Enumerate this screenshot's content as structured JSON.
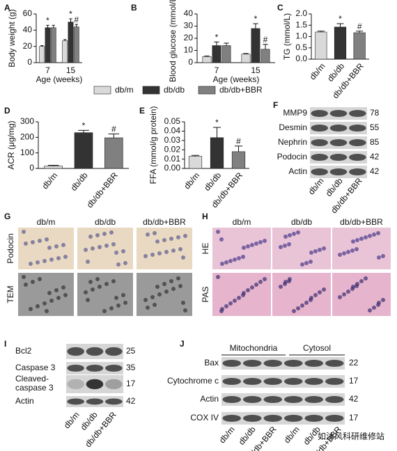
{
  "chart_data": [
    {
      "type": "bar",
      "ylabel": "Body weight (g)",
      "xlabel": "Age (weeks)",
      "categories": [
        "7",
        "15"
      ],
      "series": [
        {
          "name": "db/m",
          "color": "#d9d9d9",
          "values": [
            20,
            27
          ],
          "errors": [
            1,
            1.5
          ],
          "markers": [
            null,
            null
          ]
        },
        {
          "name": "db/db",
          "color": "#333333",
          "values": [
            43,
            50
          ],
          "errors": [
            3,
            4
          ],
          "markers": [
            "*",
            "*"
          ]
        },
        {
          "name": "db/db+BBR",
          "color": "#808080",
          "values": [
            43,
            44
          ],
          "errors": [
            3,
            3
          ],
          "markers": [
            null,
            "#"
          ]
        }
      ],
      "ylim": [
        0,
        60
      ],
      "yticks": [
        0,
        20,
        40,
        60
      ],
      "legend": "bottom"
    },
    {
      "type": "bar",
      "ylabel": "Blood glucose (mmol/L)",
      "xlabel": "Age (weeks)",
      "categories": [
        "7",
        "15"
      ],
      "series": [
        {
          "name": "db/m",
          "color": "#d9d9d9",
          "values": [
            5,
            7
          ],
          "errors": [
            0.5,
            0.5
          ],
          "markers": [
            null,
            null
          ]
        },
        {
          "name": "db/db",
          "color": "#333333",
          "values": [
            14,
            28
          ],
          "errors": [
            3,
            4
          ],
          "markers": [
            "*",
            "*"
          ]
        },
        {
          "name": "db/db+BBR",
          "color": "#808080",
          "values": [
            14,
            11
          ],
          "errors": [
            2,
            4
          ],
          "markers": [
            null,
            "#"
          ]
        }
      ],
      "ylim": [
        0,
        40
      ],
      "yticks": [
        0,
        10,
        20,
        30,
        40
      ]
    },
    {
      "type": "bar",
      "ylabel": "TG (mmol/L)",
      "categories": [
        "db/m",
        "db/db",
        "db/db+BBR"
      ],
      "values": [
        1.2,
        1.42,
        1.17
      ],
      "errors": [
        0.04,
        0.15,
        0.07
      ],
      "markers": [
        null,
        "*",
        "#"
      ],
      "colors": [
        "#d9d9d9",
        "#333333",
        "#808080"
      ],
      "ylim": [
        0,
        2.0
      ],
      "yticks": [
        {
          "value": 0,
          "label": "0.0"
        },
        0.5,
        {
          "value": 1,
          "label": "1.0"
        },
        1.5,
        {
          "value": 2,
          "label": "2.0"
        }
      ]
    },
    {
      "type": "bar",
      "ylabel": "ACR (μg/mg)",
      "categories": [
        "db/m",
        "db/db",
        "db/db+BBR"
      ],
      "values": [
        15,
        230,
        197
      ],
      "errors": [
        5,
        15,
        25
      ],
      "markers": [
        null,
        "*",
        "#"
      ],
      "colors": [
        "#d9d9d9",
        "#333333",
        "#808080"
      ],
      "ylim": [
        0,
        300
      ],
      "yticks": [
        0,
        100,
        200,
        300
      ]
    },
    {
      "type": "bar",
      "ylabel": "FFA (mmol/g protein)",
      "categories": [
        "db/m",
        "db/db",
        "db/db+BBR"
      ],
      "values": [
        0.013,
        0.033,
        0.018
      ],
      "errors": [
        0.001,
        0.011,
        0.006
      ],
      "markers": [
        null,
        "*",
        "#"
      ],
      "colors": [
        "#d9d9d9",
        "#333333",
        "#808080"
      ],
      "ylim": [
        0,
        0.05
      ],
      "yticks": [
        {
          "value": 0,
          "label": "0.00"
        },
        0.01,
        0.02,
        0.03,
        0.04,
        0.05
      ]
    }
  ],
  "panel_letters": [
    "A",
    "B",
    "C",
    "D",
    "E",
    "F",
    "G",
    "H",
    "I",
    "J"
  ],
  "blot_f": {
    "rows": [
      {
        "label": "MMP9",
        "kda": 78
      },
      {
        "label": "Desmin",
        "kda": 55
      },
      {
        "label": "Nephrin",
        "kda": 85
      },
      {
        "label": "Podocin",
        "kda": 42
      },
      {
        "label": "Actin",
        "kda": 42
      }
    ],
    "lanes": [
      "db/m",
      "db/db",
      "db/db+BBR"
    ]
  },
  "panel_g": {
    "columns": [
      "db/m",
      "db/db",
      "db/db+BBR"
    ],
    "rows": [
      "Podocin",
      "TEM"
    ]
  },
  "panel_h": {
    "columns": [
      "db/m",
      "db/db",
      "db/db+BBR"
    ],
    "rows": [
      "HE",
      "PAS"
    ]
  },
  "blot_i": {
    "rows": [
      {
        "label": [
          "Bcl2"
        ],
        "kda": 25
      },
      {
        "label": [
          "Caspase 3"
        ],
        "kda": 35
      },
      {
        "label": [
          "Cleaved-",
          "caspase 3"
        ],
        "kda": 17
      },
      {
        "label": [
          "Actin"
        ],
        "kda": 42
      }
    ],
    "lanes": [
      "db/m",
      "db/db",
      "db/db+BBR"
    ]
  },
  "blot_j": {
    "groups": [
      "Mitochondria",
      "Cytosol"
    ],
    "rows": [
      {
        "label": "Bax",
        "kda": 22
      },
      {
        "label": "Cytochrome c",
        "kda": 17
      },
      {
        "label": "Actin",
        "kda": 42
      },
      {
        "label": "COX IV",
        "kda": 17
      }
    ],
    "lanes": [
      "db/m",
      "db/db",
      "db/db+BBR",
      "db/m",
      "db/db",
      "db/db+BBR"
    ]
  },
  "watermark": "如沐风科研维修站"
}
